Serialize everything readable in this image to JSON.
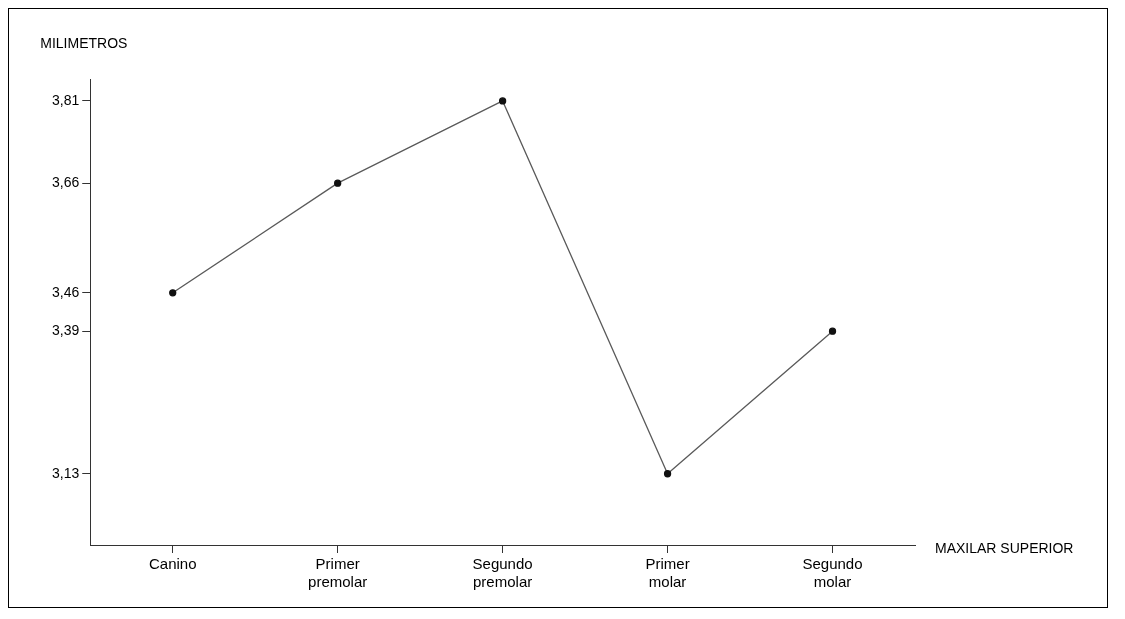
{
  "chart_data": {
    "type": "line",
    "ylabel": "MILIMETROS",
    "xlabel": "MAXILAR SUPERIOR",
    "categories": [
      "Canino",
      "Primer premolar",
      "Segundo premolar",
      "Primer molar",
      "Segundo molar"
    ],
    "series": [
      {
        "color": "#5a5a5a",
        "values": [
          3.46,
          3.66,
          3.81,
          3.13,
          3.39
        ]
      }
    ],
    "ylim": [
      3.0,
      3.85
    ],
    "yticks": [
      {
        "value": 3.13,
        "label": "3,13"
      },
      {
        "value": 3.39,
        "label": "3,39"
      },
      {
        "value": 3.46,
        "label": "3,46"
      },
      {
        "value": 3.66,
        "label": "3,66"
      },
      {
        "value": 3.81,
        "label": "3,81"
      }
    ],
    "grid": false,
    "legend": false,
    "marker": "circle",
    "line_style": "solid"
  }
}
